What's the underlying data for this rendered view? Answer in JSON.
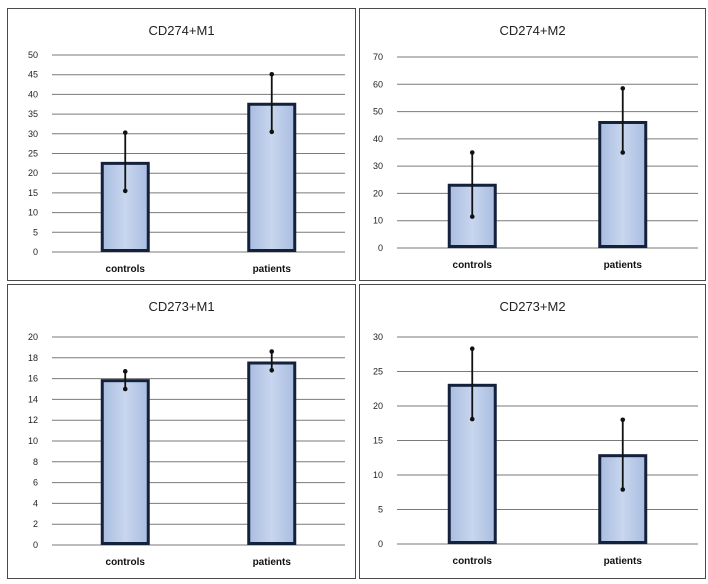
{
  "chart_data": [
    {
      "type": "bar",
      "title": "CD274+M1",
      "categories": [
        "controls",
        "patients"
      ],
      "values": [
        22.5,
        37.5
      ],
      "error_low": [
        15.5,
        30.5
      ],
      "error_high": [
        30.3,
        45.1
      ],
      "ylim": [
        0,
        50
      ],
      "yticks": [
        0,
        5,
        10,
        15,
        20,
        25,
        30,
        35,
        40,
        45,
        50
      ],
      "grid": true
    },
    {
      "type": "bar",
      "title": "CD274+M2",
      "categories": [
        "controls",
        "patients"
      ],
      "values": [
        23,
        46
      ],
      "error_low": [
        11.5,
        35
      ],
      "error_high": [
        35,
        58.5
      ],
      "ylim": [
        0,
        70
      ],
      "yticks": [
        0,
        10,
        20,
        30,
        40,
        50,
        60,
        70
      ],
      "grid": true
    },
    {
      "type": "bar",
      "title": "CD273+M1",
      "categories": [
        "controls",
        "patients"
      ],
      "values": [
        15.8,
        17.5
      ],
      "error_low": [
        15.0,
        16.8
      ],
      "error_high": [
        16.7,
        18.6
      ],
      "ylim": [
        0,
        20
      ],
      "yticks": [
        0,
        2,
        4,
        6,
        8,
        10,
        12,
        14,
        16,
        18,
        20
      ],
      "grid": true
    },
    {
      "type": "bar",
      "title": "CD273+M2",
      "categories": [
        "controls",
        "patients"
      ],
      "values": [
        23,
        12.8
      ],
      "error_low": [
        18.1,
        7.9
      ],
      "error_high": [
        28.3,
        18.0
      ],
      "ylim": [
        0,
        30
      ],
      "yticks": [
        0,
        5,
        10,
        15,
        20,
        25,
        30
      ],
      "grid": true
    }
  ],
  "colors": {
    "bar_fill": "#c8d6ee",
    "bar_edge": "#14213d",
    "grid": "#7a7a7a"
  }
}
